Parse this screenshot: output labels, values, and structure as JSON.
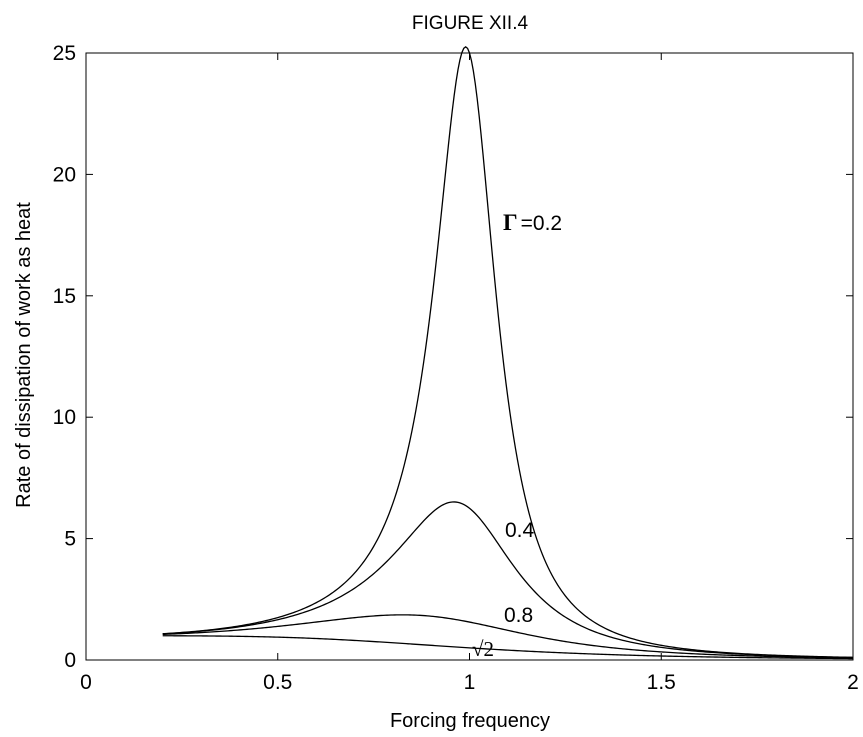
{
  "chart_data": {
    "type": "line",
    "title": "FIGURE XII.4",
    "xlabel": "Forcing frequency",
    "ylabel": "Rate of dissipation of work as heat",
    "xlim": [
      0,
      2
    ],
    "ylim": [
      0,
      25
    ],
    "x_ticks": [
      "0",
      "0.5",
      "1",
      "1.5",
      "2"
    ],
    "y_ticks": [
      "0",
      "5",
      "10",
      "15",
      "20",
      "25"
    ],
    "grid": false,
    "series": [
      {
        "name": "Γ =0.2",
        "gamma": 0.2,
        "peak": 25.0,
        "x": [
          0.2,
          0.3,
          0.4,
          0.5,
          0.6,
          0.7,
          0.8,
          0.85,
          0.9,
          0.95,
          1.0,
          1.05,
          1.1,
          1.15,
          1.2,
          1.3,
          1.4,
          1.5,
          1.6,
          1.7,
          1.8,
          1.9,
          2.0
        ],
        "y": [
          0.07,
          0.17,
          0.34,
          0.65,
          1.27,
          2.7,
          6.7,
          10.7,
          17.4,
          23.8,
          25.0,
          20.7,
          14.8,
          10.3,
          7.3,
          4.0,
          2.5,
          1.7,
          1.2,
          0.9,
          0.7,
          0.55,
          0.44
        ]
      },
      {
        "name": "0.4",
        "gamma": 0.4,
        "peak": 6.25,
        "x": [
          0.2,
          0.3,
          0.4,
          0.5,
          0.6,
          0.7,
          0.8,
          0.9,
          1.0,
          1.1,
          1.2,
          1.3,
          1.4,
          1.5,
          1.6,
          1.7,
          1.8,
          1.9,
          2.0
        ],
        "y": [
          0.07,
          0.16,
          0.32,
          0.6,
          1.08,
          1.99,
          3.6,
          5.6,
          6.25,
          5.3,
          3.9,
          2.8,
          2.0,
          1.5,
          1.1,
          0.87,
          0.68,
          0.55,
          0.45
        ]
      },
      {
        "name": "0.8",
        "gamma": 0.8,
        "peak": 1.56,
        "x": [
          0.2,
          0.3,
          0.4,
          0.5,
          0.6,
          0.7,
          0.8,
          0.9,
          1.0,
          1.1,
          1.2,
          1.3,
          1.4,
          1.5,
          1.6,
          1.7,
          1.8,
          1.9,
          2.0
        ],
        "y": [
          0.06,
          0.14,
          0.27,
          0.45,
          0.7,
          1.0,
          1.3,
          1.5,
          1.56,
          1.5,
          1.35,
          1.17,
          0.99,
          0.82,
          0.69,
          0.58,
          0.49,
          0.41,
          0.35
        ]
      },
      {
        "name": "√2",
        "gamma": 1.414,
        "peak": 0.5,
        "x": [
          0.2,
          0.3,
          0.4,
          0.5,
          0.6,
          0.7,
          0.8,
          0.9,
          1.0,
          1.1,
          1.2,
          1.3,
          1.4,
          1.5,
          1.6,
          1.7,
          1.8,
          1.9,
          2.0
        ],
        "y": [
          0.04,
          0.09,
          0.15,
          0.22,
          0.3,
          0.37,
          0.43,
          0.48,
          0.5,
          0.49,
          0.47,
          0.44,
          0.41,
          0.38,
          0.35,
          0.32,
          0.29,
          0.27,
          0.25
        ]
      }
    ],
    "annotations": [
      {
        "text": "Γ",
        "suffix": "=0.2",
        "series": 0
      },
      {
        "text": "0.4",
        "series": 1
      },
      {
        "text": "0.8",
        "series": 2
      },
      {
        "text": "√2",
        "series": 3
      }
    ]
  }
}
